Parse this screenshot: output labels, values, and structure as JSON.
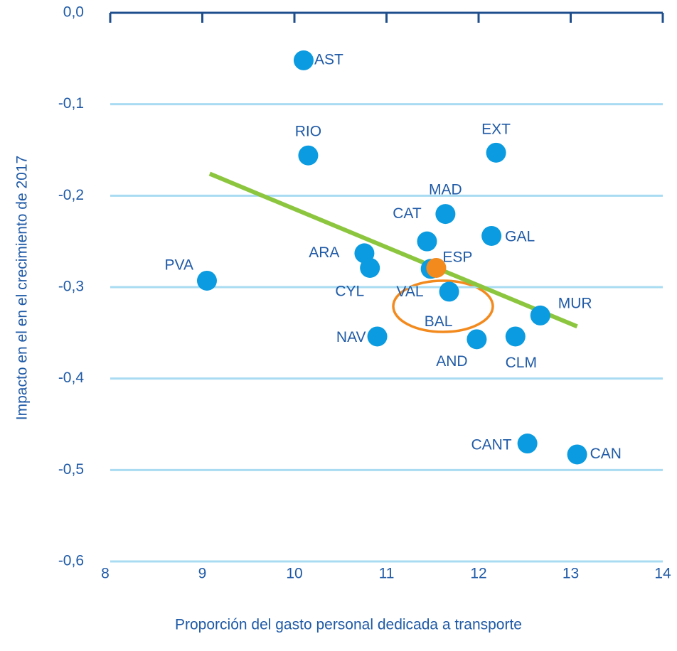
{
  "chart_data": {
    "type": "scatter",
    "xlabel": "Proporción del gasto personal dedicada a transporte",
    "ylabel": "Impacto en el en el crecimiento de 2017",
    "labels": [
      "AST",
      "RIO",
      "EXT",
      "MAD",
      "CAT",
      "GAL",
      "ARA",
      "CYL",
      "BAL",
      "ESP",
      "VAL",
      "PVA",
      "MUR",
      "NAV",
      "AND",
      "CLM",
      "CANT",
      "CAN"
    ],
    "x": [
      10.1,
      10.15,
      12.19,
      11.64,
      11.44,
      12.14,
      10.76,
      10.82,
      11.48,
      11.54,
      11.68,
      9.05,
      12.67,
      10.9,
      11.98,
      12.4,
      12.53,
      13.07
    ],
    "y": [
      -0.052,
      -0.156,
      -0.153,
      -0.22,
      -0.25,
      -0.244,
      -0.263,
      -0.279,
      -0.28,
      -0.279,
      -0.305,
      -0.293,
      -0.331,
      -0.354,
      -0.357,
      -0.354,
      -0.471,
      -0.483
    ],
    "point_colors": [
      "#0a9be0",
      "#0a9be0",
      "#0a9be0",
      "#0a9be0",
      "#0a9be0",
      "#0a9be0",
      "#0a9be0",
      "#0a9be0",
      "#0a9be0",
      "#f28a1e",
      "#0a9be0",
      "#0a9be0",
      "#0a9be0",
      "#0a9be0",
      "#0a9be0",
      "#0a9be0",
      "#0a9be0",
      "#0a9be0"
    ],
    "trendline": {
      "x": [
        9.08,
        13.07
      ],
      "y": [
        -0.176,
        -0.343
      ],
      "color": "#8cc63f"
    },
    "xlim": [
      8,
      14
    ],
    "xticks": [
      8,
      9,
      10,
      11,
      12,
      13,
      14
    ],
    "ylim": [
      -0.6,
      0
    ],
    "yticks": [
      {
        "value": 0,
        "label": "0,0"
      },
      {
        "value": -0.1,
        "label": "-0,1"
      },
      {
        "value": -0.2,
        "label": "-0,2"
      },
      {
        "value": -0.3,
        "label": "-0,3"
      },
      {
        "value": -0.4,
        "label": "-0,4"
      },
      {
        "value": -0.5,
        "label": "-0,5"
      },
      {
        "value": -0.6,
        "label": "-0,6"
      }
    ],
    "grid": true
  }
}
